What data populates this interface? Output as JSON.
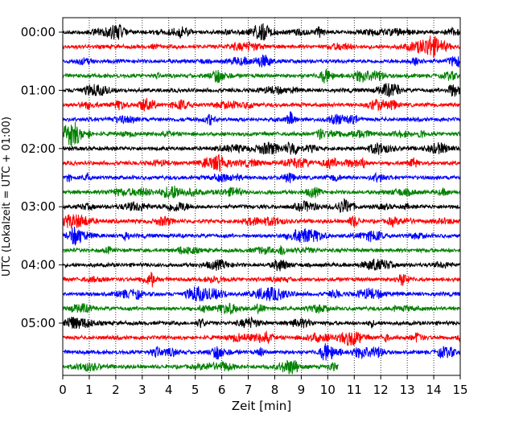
{
  "chart_data": {
    "type": "line",
    "title": "",
    "xlabel": "Zeit  [min]",
    "ylabel": "UTC (Lokalzeit = UTC + 01:00)",
    "xlim": [
      0,
      15
    ],
    "x_ticks": [
      "0",
      "1",
      "2",
      "3",
      "4",
      "5",
      "6",
      "7",
      "8",
      "9",
      "10",
      "11",
      "12",
      "13",
      "14",
      "15"
    ],
    "y_ticks": [
      {
        "label": "00:00",
        "trace": 0
      },
      {
        "label": "01:00",
        "trace": 4
      },
      {
        "label": "02:00",
        "trace": 8
      },
      {
        "label": "03:00",
        "trace": 12
      },
      {
        "label": "04:00",
        "trace": 16
      },
      {
        "label": "05:00",
        "trace": 20
      }
    ],
    "grid": {
      "vertical": true,
      "horizontal": false,
      "style": "dotted"
    },
    "trace_minutes": 15,
    "colors": [
      "#000000",
      "#ff0000",
      "#0000ff",
      "#008000"
    ],
    "traces": [
      {
        "start": "00:00",
        "end_min": 15,
        "color": "#000000"
      },
      {
        "start": "00:15",
        "end_min": 15,
        "color": "#ff0000"
      },
      {
        "start": "00:30",
        "end_min": 15,
        "color": "#0000ff"
      },
      {
        "start": "00:45",
        "end_min": 15,
        "color": "#008000"
      },
      {
        "start": "01:00",
        "end_min": 15,
        "color": "#000000"
      },
      {
        "start": "01:15",
        "end_min": 15,
        "color": "#ff0000"
      },
      {
        "start": "01:30",
        "end_min": 15,
        "color": "#0000ff"
      },
      {
        "start": "01:45",
        "end_min": 15,
        "color": "#008000"
      },
      {
        "start": "02:00",
        "end_min": 15,
        "color": "#000000"
      },
      {
        "start": "02:15",
        "end_min": 15,
        "color": "#ff0000"
      },
      {
        "start": "02:30",
        "end_min": 15,
        "color": "#0000ff"
      },
      {
        "start": "02:45",
        "end_min": 15,
        "color": "#008000"
      },
      {
        "start": "03:00",
        "end_min": 15,
        "color": "#000000"
      },
      {
        "start": "03:15",
        "end_min": 15,
        "color": "#ff0000"
      },
      {
        "start": "03:30",
        "end_min": 15,
        "color": "#0000ff"
      },
      {
        "start": "03:45",
        "end_min": 15,
        "color": "#008000"
      },
      {
        "start": "04:00",
        "end_min": 15,
        "color": "#000000"
      },
      {
        "start": "04:15",
        "end_min": 15,
        "color": "#ff0000"
      },
      {
        "start": "04:30",
        "end_min": 15,
        "color": "#0000ff"
      },
      {
        "start": "04:45",
        "end_min": 15,
        "color": "#008000"
      },
      {
        "start": "05:00",
        "end_min": 15,
        "color": "#000000"
      },
      {
        "start": "05:15",
        "end_min": 15,
        "color": "#ff0000"
      },
      {
        "start": "05:30",
        "end_min": 15,
        "color": "#0000ff"
      },
      {
        "start": "05:45",
        "end_min": 10.4,
        "color": "#008000"
      }
    ]
  }
}
